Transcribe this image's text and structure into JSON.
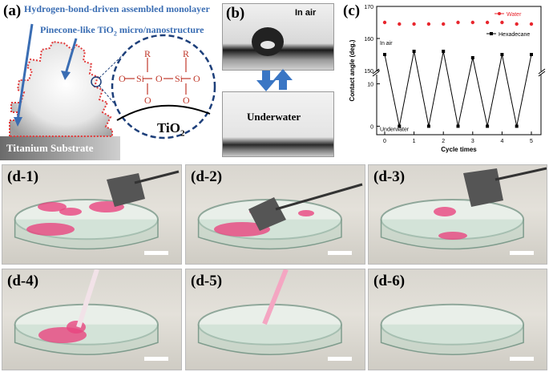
{
  "panel_a": {
    "label": "(a)",
    "annotation_1": "Hydrogen-bond-driven assembled monolayer",
    "annotation_2": "Pinecone-like TiO",
    "annotation_2_sub": "2",
    "annotation_2_end": " micro/nanostructure",
    "substrate_label": "Titanium Substrate",
    "tio2_label": "TiO",
    "tio2_sub": "2",
    "r_label": "R",
    "o_label": "O",
    "si_label": "Si"
  },
  "panel_b": {
    "label": "(b)",
    "top_text": "In air",
    "bottom_text": "Underwater"
  },
  "panel_c": {
    "label": "(c)"
  },
  "photos": [
    {
      "label": "(d-1)"
    },
    {
      "label": "(d-2)"
    },
    {
      "label": "(d-3)"
    },
    {
      "label": "(d-4)"
    },
    {
      "label": "(d-5)"
    },
    {
      "label": "(d-6)"
    }
  ],
  "chart_data": {
    "type": "scatter",
    "xlabel": "Cycle times",
    "ylabel": "Contact angle (deg.)",
    "x_ticks": [
      "0",
      "1",
      "2",
      "3",
      "4",
      "5"
    ],
    "y_ticks_upper": [
      "150",
      "160",
      "170"
    ],
    "y_ticks_lower": [
      "0",
      "10"
    ],
    "ylim_upper": [
      150,
      170
    ],
    "ylim_lower": [
      -2,
      12
    ],
    "axis_break": true,
    "annotations": {
      "in_air": "In air",
      "underwater": "Underwater"
    },
    "series": [
      {
        "name": "Water",
        "color": "#e8262d",
        "x": [
          0,
          0.5,
          1,
          1.5,
          2,
          2.5,
          3,
          3.5,
          4,
          4.5,
          5
        ],
        "values": [
          165,
          164.5,
          164.5,
          164.5,
          164.5,
          165,
          165,
          165,
          165,
          164.5,
          164.5
        ]
      },
      {
        "name": "Hexadecane",
        "color": "#000000",
        "x": [
          0,
          0.5,
          1,
          1.5,
          2,
          2.5,
          3,
          3.5,
          4,
          4.5,
          5
        ],
        "values": [
          155,
          0,
          156,
          0,
          156,
          0,
          154,
          0,
          155,
          0,
          155
        ]
      }
    ]
  }
}
